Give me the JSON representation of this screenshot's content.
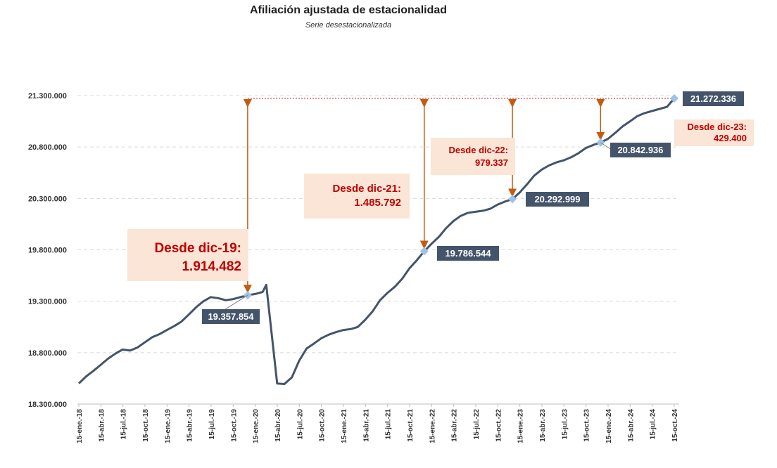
{
  "title": "Afiliación ajustada de estacionalidad",
  "subtitle": "Serie desestacionalizada",
  "colors": {
    "line": "#44546a",
    "marker": "#9dc3e6",
    "label_bg": "#44546a",
    "label_text": "#ffffff",
    "annotation_bg": "#fbe5d6",
    "annotation_text": "#c00000",
    "arrow": "#c55a11",
    "reference_line": "#e06666",
    "grid": "#d9d9d9"
  },
  "chart_data": {
    "type": "line",
    "title": "Afiliación ajustada de estacionalidad",
    "subtitle": "Serie desestacionalizada",
    "ylim": [
      18300000,
      21300000
    ],
    "yticks": [
      "18.300.000",
      "18.800.000",
      "19.300.000",
      "19.800.000",
      "20.300.000",
      "20.800.000",
      "21.300.000"
    ],
    "ytick_values": [
      18300000,
      18800000,
      19300000,
      19800000,
      20300000,
      20800000,
      21300000
    ],
    "grid": "horizontal dashed",
    "x_tick_labels": [
      "15-ene.-18",
      "15-abr.-18",
      "15-jul.-18",
      "15-oct.-18",
      "15-ene.-19",
      "15-abr.-19",
      "15-jul.-19",
      "15-oct.-19",
      "15-ene.-20",
      "15-abr.-20",
      "15-jul.-20",
      "15-oct.-20",
      "15-ene.-21",
      "15-abr.-21",
      "15-jul.-21",
      "15-oct.-21",
      "15-ene.-22",
      "15-abr.-22",
      "15-jul.-22",
      "15-oct.-22",
      "15-ene.-23",
      "15-abr.-23",
      "15-jul.-23",
      "15-oct.-23",
      "15-ene.-24",
      "15-abr.-24",
      "15-jul.-24",
      "15-oct.-24"
    ],
    "series": [
      {
        "x": [
          "2018-01-15",
          "2018-02-15",
          "2018-03-15",
          "2018-04-15",
          "2018-05-15",
          "2018-06-15",
          "2018-07-15",
          "2018-08-15",
          "2018-09-15",
          "2018-10-15",
          "2018-11-15",
          "2018-12-15",
          "2019-01-15",
          "2019-02-15",
          "2019-03-15",
          "2019-04-15",
          "2019-05-15",
          "2019-06-15",
          "2019-07-15",
          "2019-08-15",
          "2019-09-15",
          "2019-10-15",
          "2019-11-15",
          "2019-12-15",
          "2020-01-15",
          "2020-02-15",
          "2020-03-01",
          "2020-04-15",
          "2020-05-15",
          "2020-06-15",
          "2020-07-15",
          "2020-08-15",
          "2020-09-15",
          "2020-10-15",
          "2020-11-15",
          "2020-12-15",
          "2021-01-15",
          "2021-02-15",
          "2021-03-15",
          "2021-04-15",
          "2021-05-15",
          "2021-06-15",
          "2021-07-15",
          "2021-08-15",
          "2021-09-15",
          "2021-10-15",
          "2021-11-15",
          "2021-12-15",
          "2022-01-15",
          "2022-02-15",
          "2022-03-15",
          "2022-04-15",
          "2022-05-15",
          "2022-06-15",
          "2022-07-15",
          "2022-08-15",
          "2022-09-15",
          "2022-10-15",
          "2022-11-15",
          "2022-12-15",
          "2023-01-15",
          "2023-02-15",
          "2023-03-15",
          "2023-04-15",
          "2023-05-15",
          "2023-06-15",
          "2023-07-15",
          "2023-08-15",
          "2023-09-15",
          "2023-10-15",
          "2023-11-15",
          "2023-12-15",
          "2024-01-15",
          "2024-02-15",
          "2024-03-15",
          "2024-04-15",
          "2024-05-15",
          "2024-06-15",
          "2024-07-15",
          "2024-08-15",
          "2024-09-15",
          "2024-10-15"
        ],
        "values": [
          18500000,
          18570000,
          18620000,
          18680000,
          18740000,
          18790000,
          18830000,
          18820000,
          18850000,
          18900000,
          18950000,
          18980000,
          19020000,
          19060000,
          19100000,
          19170000,
          19240000,
          19300000,
          19340000,
          19330000,
          19310000,
          19320000,
          19340000,
          19357854,
          19370000,
          19390000,
          19460000,
          18500000,
          18495000,
          18560000,
          18720000,
          18840000,
          18890000,
          18940000,
          18975000,
          19000000,
          19020000,
          19030000,
          19050000,
          19120000,
          19200000,
          19310000,
          19380000,
          19440000,
          19520000,
          19620000,
          19700000,
          19786544,
          19860000,
          19930000,
          20010000,
          20080000,
          20130000,
          20160000,
          20170000,
          20180000,
          20200000,
          20240000,
          20270000,
          20292999,
          20360000,
          20440000,
          20520000,
          20580000,
          20620000,
          20650000,
          20670000,
          20700000,
          20740000,
          20790000,
          20820000,
          20842936,
          20880000,
          20940000,
          21000000,
          21050000,
          21100000,
          21130000,
          21150000,
          21170000,
          21190000,
          21272336
        ]
      }
    ],
    "value_labels": [
      {
        "date": "2019-12-15",
        "text": "19.357.854"
      },
      {
        "date": "2021-12-15",
        "text": "19.786.544"
      },
      {
        "date": "2022-12-15",
        "text": "20.292.999"
      },
      {
        "date": "2023-12-15",
        "text": "20.842.936"
      },
      {
        "date": "2024-10-15",
        "text": "21.272.336"
      }
    ],
    "annotations": [
      {
        "line1": "Desde dic-19:",
        "line2": "1.914.482"
      },
      {
        "line1": "Desde dic-21:",
        "line2": "1.485.792"
      },
      {
        "line1": "Desde dic-22:",
        "line2": "979.337"
      },
      {
        "line1": "Desde dic-23:",
        "line2": "429.400"
      }
    ]
  }
}
